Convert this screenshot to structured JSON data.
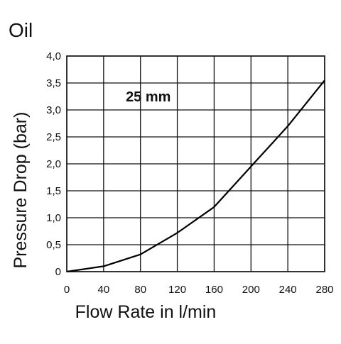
{
  "chart_data": {
    "type": "line",
    "title": "Oil",
    "xlabel": "Flow Rate in l/min",
    "ylabel": "Pressure Drop (bar)",
    "xlim": [
      0,
      280
    ],
    "ylim": [
      0,
      4.0
    ],
    "x_ticks": [
      0,
      40,
      80,
      120,
      160,
      200,
      240,
      280
    ],
    "x_tick_labels": [
      "0",
      "40",
      "80",
      "120",
      "160",
      "200",
      "240",
      "280"
    ],
    "y_ticks": [
      0,
      0.5,
      1.0,
      1.5,
      2.0,
      2.5,
      3.0,
      3.5,
      4.0
    ],
    "y_tick_labels": [
      "0",
      "0,5",
      "1,0",
      "1,5",
      "2,0",
      "2,5",
      "3,0",
      "3,5",
      "4,0"
    ],
    "grid": true,
    "annotations": [
      {
        "text": "25 mm",
        "x": 70,
        "y": 3.25
      }
    ],
    "series": [
      {
        "color": "#000000",
        "x": [
          0,
          40,
          80,
          120,
          160,
          200,
          240,
          280
        ],
        "values": [
          0.0,
          0.1,
          0.32,
          0.72,
          1.2,
          1.95,
          2.7,
          3.55
        ]
      }
    ]
  }
}
